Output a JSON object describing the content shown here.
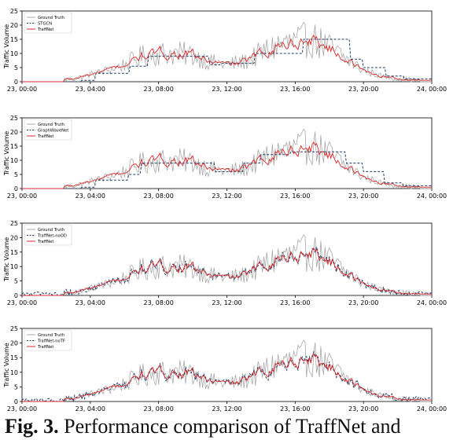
{
  "chart_data": [
    {
      "type": "line",
      "xlabel": "",
      "ylabel": "Traffic Volume",
      "ylim": [
        0,
        25
      ],
      "xlim": [
        "23, 00:00",
        "24, 00:00"
      ],
      "x_ticks": [
        "23, 00:00",
        "23, 04:00",
        "23, 08:00",
        "23, 12:00",
        "23, 16:00",
        "23, 20:00",
        "24, 00:00"
      ],
      "y_ticks": [
        "0",
        "5",
        "10",
        "15",
        "20",
        "25"
      ],
      "legend_placement": "top-left",
      "grid": false,
      "series": [
        {
          "name": "Ground Truth",
          "color": "#a9a9a9",
          "style": "solid"
        },
        {
          "name": "STGCN",
          "color": "#1f3d6b",
          "style": "dashed"
        },
        {
          "name": "TraffNet",
          "color": "#d62728",
          "style": "solid"
        }
      ]
    },
    {
      "type": "line",
      "xlabel": "",
      "ylabel": "Traffic Volume",
      "ylim": [
        0,
        25
      ],
      "xlim": [
        "23, 00:00",
        "24, 00:00"
      ],
      "x_ticks": [
        "23, 00:00",
        "23, 04:00",
        "23, 08:00",
        "23, 12:00",
        "23, 16:00",
        "23, 20:00",
        "24, 00:00"
      ],
      "y_ticks": [
        "0",
        "5",
        "10",
        "15",
        "20",
        "25"
      ],
      "legend_placement": "top-left",
      "grid": false,
      "series": [
        {
          "name": "Ground Truth",
          "color": "#a9a9a9",
          "style": "solid"
        },
        {
          "name": "GraphWaveNet",
          "color": "#1f3d6b",
          "style": "dashed"
        },
        {
          "name": "TraffNet",
          "color": "#d62728",
          "style": "solid"
        }
      ]
    },
    {
      "type": "line",
      "xlabel": "",
      "ylabel": "Traffic Volume",
      "ylim": [
        0,
        25
      ],
      "xlim": [
        "23, 00:00",
        "24, 00:00"
      ],
      "x_ticks": [
        "23, 00:00",
        "23, 04:00",
        "23, 08:00",
        "23, 12:00",
        "23, 16:00",
        "23, 20:00",
        "24, 00:00"
      ],
      "y_ticks": [
        "0",
        "5",
        "10",
        "15",
        "20",
        "25"
      ],
      "legend_placement": "top-left",
      "grid": false,
      "series": [
        {
          "name": "Ground Truth",
          "color": "#a9a9a9",
          "style": "solid"
        },
        {
          "name": "TraffNet-noOD",
          "color": "#1f3d6b",
          "style": "dashed"
        },
        {
          "name": "TraffNet",
          "color": "#d62728",
          "style": "solid"
        }
      ]
    },
    {
      "type": "line",
      "xlabel": "",
      "ylabel": "Traffic Volume",
      "ylim": [
        0,
        25
      ],
      "xlim": [
        "23, 00:00",
        "24, 00:00"
      ],
      "x_ticks": [
        "23, 00:00",
        "23, 04:00",
        "23, 08:00",
        "23, 12:00",
        "23, 16:00",
        "23, 20:00",
        "24, 00:00"
      ],
      "y_ticks": [
        "0",
        "5",
        "10",
        "15",
        "20",
        "25"
      ],
      "legend_placement": "top-left",
      "grid": false,
      "series": [
        {
          "name": "Ground Truth",
          "color": "#a9a9a9",
          "style": "solid"
        },
        {
          "name": "TraffNet-noTF",
          "color": "#1f3d6b",
          "style": "dashed"
        },
        {
          "name": "TraffNet",
          "color": "#d62728",
          "style": "solid"
        }
      ]
    }
  ],
  "shared_series_profile": {
    "hours": [
      0,
      1,
      2,
      3,
      4,
      5,
      6,
      7,
      8,
      9,
      10,
      11,
      12,
      13,
      14,
      15,
      16,
      17,
      18,
      19,
      20,
      21,
      22,
      23,
      24
    ],
    "traffic_volume": [
      0,
      0,
      0.5,
      1,
      2.5,
      4,
      6,
      9,
      10,
      10,
      9.5,
      7,
      6,
      7,
      10,
      13,
      14,
      15,
      12,
      8,
      4,
      2,
      1,
      0.5,
      0
    ]
  },
  "step_profiles": {
    "STGCN": {
      "hours": [
        0,
        3.5,
        4.3,
        6.3,
        7.4,
        11.0,
        11.6,
        13.6,
        16.5,
        19.2,
        20.0,
        21.3,
        22.4,
        24
      ],
      "traffic_volume": [
        0,
        0.5,
        3,
        5.5,
        9,
        6,
        6.5,
        10,
        15,
        8,
        5,
        2,
        1,
        1
      ]
    },
    "GraphWaveNet": {
      "hours": [
        0,
        3.5,
        4.3,
        6.2,
        7.0,
        11.3,
        13.0,
        14.0,
        15.7,
        19.0,
        20.0,
        21.2,
        22.3,
        24
      ],
      "traffic_volume": [
        0,
        0.5,
        3,
        5,
        9,
        6,
        9,
        12,
        13,
        9,
        6,
        2,
        1,
        1
      ]
    }
  },
  "caption": {
    "fig_label": "Fig. 3.",
    "text": " Performance comparison of TraffNet and"
  }
}
